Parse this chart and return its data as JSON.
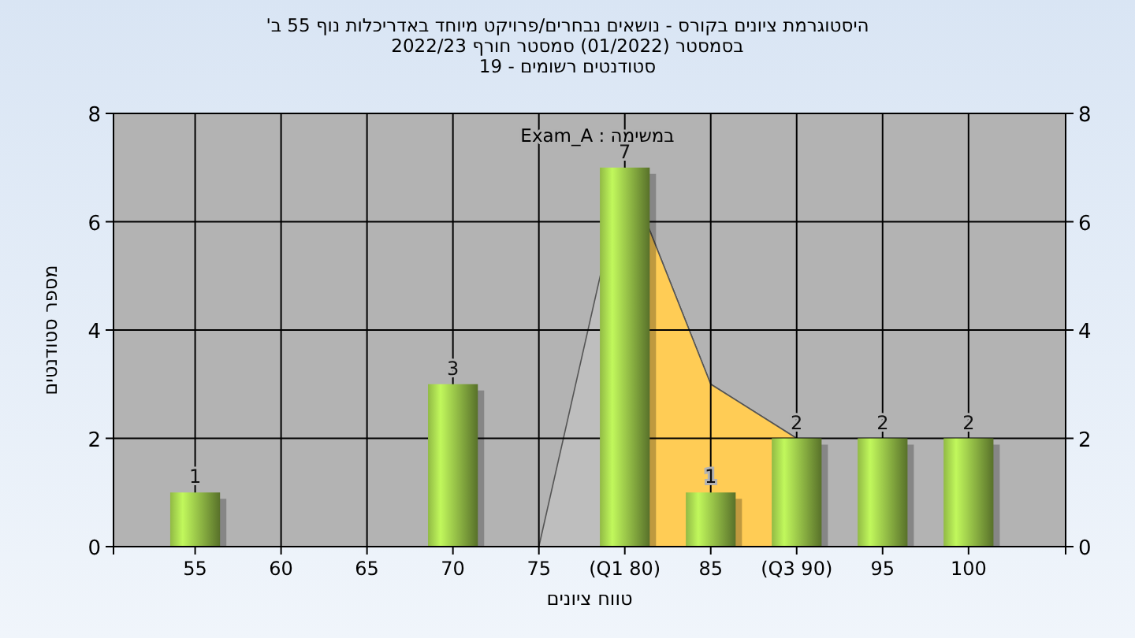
{
  "chart_data": {
    "type": "bar",
    "title": "היסטוגרמת ציונים בקורס - נושאים נבחרים/פרויקט מיוחד באדריכלות נוף 55 ב'",
    "subtitle": [
      "בסמסטר (01/2022) סמסטר חורף 2022/23",
      "סטודנטים רשומים - 19"
    ],
    "xlabel": "טווח ציונים",
    "ylabel": "מספר סטודנטים",
    "annotations": [
      "במשימה : Exam_A"
    ],
    "categories": [
      "55",
      "60",
      "65",
      "70",
      "75",
      "(Q1 80)",
      "85",
      "(Q3 90)",
      "95",
      "100"
    ],
    "series": [
      {
        "type": "area",
        "color": "#bebebe",
        "values": [
          null,
          null,
          null,
          null,
          0,
          7,
          3,
          2,
          null,
          null
        ]
      },
      {
        "type": "area",
        "color": "#ffcc55",
        "values": [
          null,
          null,
          null,
          null,
          null,
          7,
          3,
          2,
          null,
          null
        ]
      },
      {
        "color": "#9cc84a",
        "values": [
          1,
          0,
          0,
          3,
          0,
          7,
          1,
          2,
          2,
          2
        ],
        "value_labels": [
          "1",
          null,
          null,
          "3",
          null,
          "7",
          "1",
          "2",
          "2",
          "2"
        ]
      }
    ],
    "ylim": [
      0,
      8
    ],
    "yticks": [
      0,
      2,
      4,
      6,
      8
    ],
    "y2lim": [
      0,
      8
    ],
    "y2ticks": [
      0,
      2,
      4,
      6,
      8
    ],
    "grid": true
  }
}
